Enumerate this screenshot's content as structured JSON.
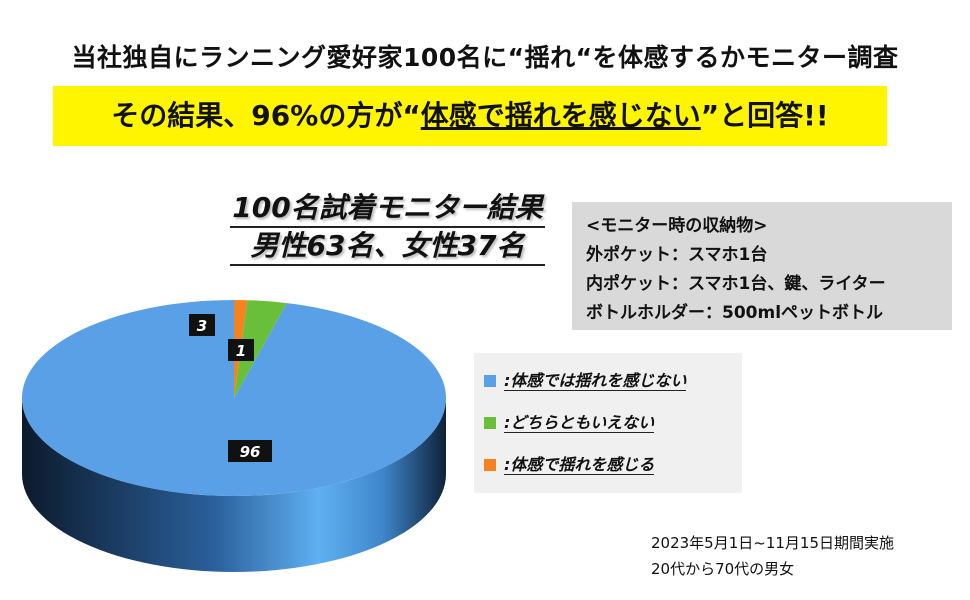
{
  "header": {
    "headline": "当社独自にランニング愛好家100名に“揺れ“を体感するかモニター調査",
    "banner_pre": "その結果、96%の方が“",
    "banner_emph": "体感で揺れを感じない",
    "banner_post": "”と回答!!"
  },
  "info_box": {
    "title": "<モニター時の収納物>",
    "lines": [
      "外ポケット：スマホ1台",
      "内ポケット：スマホ1台、鍵、ライター",
      "ボトルホルダー：500mlペットボトル"
    ]
  },
  "footnote": {
    "period": "2023年5月1日~11月15日期間実施",
    "ages": "20代から70代の男女"
  },
  "chart_data": {
    "type": "pie",
    "style": "3d",
    "title": "100名試着モニター結果",
    "subtitle": "男性63名、女性37名",
    "slices": [
      {
        "label": ":体感では揺れを感じない",
        "value": 96,
        "color": "#5aa0e6"
      },
      {
        "label": ":どちらともいえない",
        "value": 3,
        "color": "#6abf3a"
      },
      {
        "label": ":体感で揺れを感じる",
        "value": 1,
        "color": "#f58220"
      }
    ],
    "data_labels": [
      "96",
      "3",
      "1"
    ],
    "legend_position": "right"
  }
}
